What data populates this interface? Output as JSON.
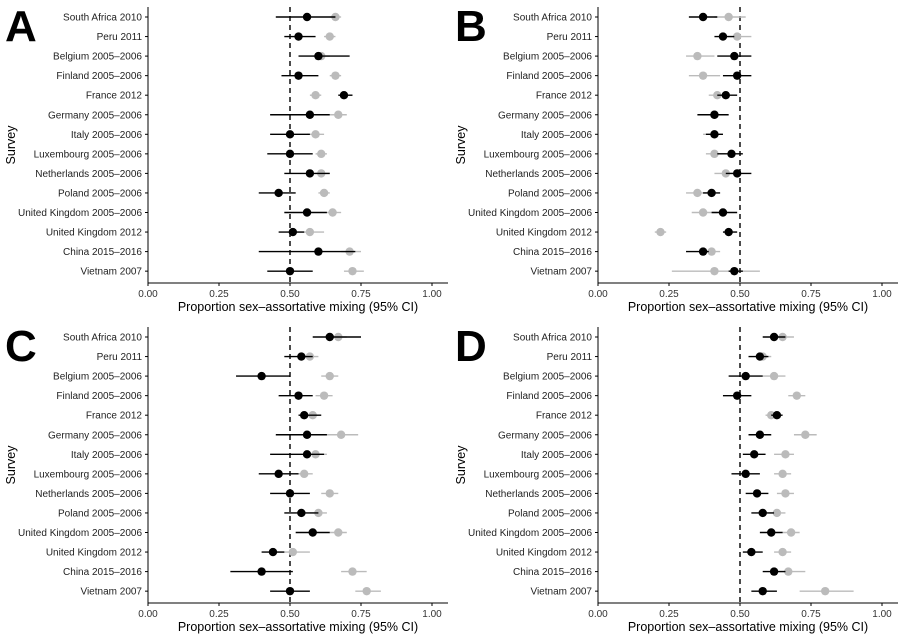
{
  "chart_data": [
    {
      "type": "scatter",
      "panel_label": "A",
      "xlabel": "Proportion sex–assortative mixing (95% CI)",
      "ylabel": "Survey",
      "xlim": [
        0,
        1
      ],
      "xticks": [
        "0.00",
        "0.25",
        "0.50",
        "0.75",
        "1.00"
      ],
      "reference_line": 0.5,
      "categories": [
        "South Africa 2010",
        "Peru 2011",
        "Belgium 2005–2006",
        "Finland 2005–2006",
        "France 2012",
        "Germany 2005–2006",
        "Italy 2005–2006",
        "Luxembourg 2005–2006",
        "Netherlands 2005–2006",
        "Poland 2005–2006",
        "United Kingdom 2005–2006",
        "United Kingdom 2012",
        "China 2015–2016",
        "Vietnam 2007"
      ],
      "series": [
        {
          "color": "#bbbbbb",
          "points": [
            [
              0.66,
              0.64,
              0.68
            ],
            [
              0.64,
              0.62,
              0.66
            ],
            [
              0.61,
              0.58,
              0.64
            ],
            [
              0.66,
              0.64,
              0.68
            ],
            [
              0.59,
              0.57,
              0.61
            ],
            [
              0.67,
              0.64,
              0.7
            ],
            [
              0.59,
              0.56,
              0.62
            ],
            [
              0.61,
              0.59,
              0.63
            ],
            [
              0.61,
              0.59,
              0.64
            ],
            [
              0.62,
              0.6,
              0.64
            ],
            [
              0.65,
              0.63,
              0.68
            ],
            [
              0.57,
              0.52,
              0.62
            ],
            [
              0.71,
              0.68,
              0.75
            ],
            [
              0.72,
              0.69,
              0.76
            ]
          ]
        },
        {
          "color": "#000000",
          "points": [
            [
              0.56,
              0.45,
              0.66
            ],
            [
              0.53,
              0.48,
              0.59
            ],
            [
              0.6,
              0.53,
              0.71
            ],
            [
              0.53,
              0.47,
              0.6
            ],
            [
              0.69,
              0.67,
              0.72
            ],
            [
              0.57,
              0.43,
              0.64
            ],
            [
              0.5,
              0.43,
              0.57
            ],
            [
              0.5,
              0.42,
              0.58
            ],
            [
              0.57,
              0.48,
              0.64
            ],
            [
              0.46,
              0.39,
              0.52
            ],
            [
              0.56,
              0.48,
              0.63
            ],
            [
              0.51,
              0.46,
              0.55
            ],
            [
              0.6,
              0.39,
              0.73
            ],
            [
              0.5,
              0.42,
              0.58
            ]
          ]
        }
      ]
    },
    {
      "type": "scatter",
      "panel_label": "B",
      "xlabel": "Proportion sex–assortative mixing (95% CI)",
      "ylabel": "Survey",
      "xlim": [
        0,
        1
      ],
      "xticks": [
        "0.00",
        "0.25",
        "0.50",
        "0.75",
        "1.00"
      ],
      "reference_line": 0.5,
      "categories": [
        "South Africa 2010",
        "Peru 2011",
        "Belgium 2005–2006",
        "Finland 2005–2006",
        "France 2012",
        "Germany 2005–2006",
        "Italy 2005–2006",
        "Luxembourg 2005–2006",
        "Netherlands 2005–2006",
        "Poland 2005–2006",
        "United Kingdom 2005–2006",
        "United Kingdom 2012",
        "China 2015–2016",
        "Vietnam 2007"
      ],
      "series": [
        {
          "color": "#bbbbbb",
          "points": [
            [
              0.46,
              0.41,
              0.52
            ],
            [
              0.49,
              0.45,
              0.54
            ],
            [
              0.35,
              0.31,
              0.41
            ],
            [
              0.37,
              0.32,
              0.43
            ],
            [
              0.42,
              0.39,
              0.45
            ],
            [
              0.41,
              0.36,
              0.46
            ],
            [
              0.41,
              0.37,
              0.44
            ],
            [
              0.41,
              0.38,
              0.45
            ],
            [
              0.45,
              0.41,
              0.49
            ],
            [
              0.35,
              0.31,
              0.39
            ],
            [
              0.37,
              0.33,
              0.42
            ],
            [
              0.22,
              0.2,
              0.24
            ],
            [
              0.4,
              0.37,
              0.43
            ],
            [
              0.41,
              0.26,
              0.57
            ]
          ]
        },
        {
          "color": "#000000",
          "points": [
            [
              0.37,
              0.32,
              0.42
            ],
            [
              0.44,
              0.41,
              0.48
            ],
            [
              0.48,
              0.42,
              0.54
            ],
            [
              0.49,
              0.44,
              0.54
            ],
            [
              0.45,
              0.42,
              0.49
            ],
            [
              0.41,
              0.35,
              0.46
            ],
            [
              0.41,
              0.38,
              0.44
            ],
            [
              0.47,
              0.42,
              0.51
            ],
            [
              0.49,
              0.45,
              0.54
            ],
            [
              0.4,
              0.37,
              0.43
            ],
            [
              0.44,
              0.4,
              0.49
            ],
            [
              0.46,
              0.44,
              0.49
            ],
            [
              0.37,
              0.31,
              0.39
            ],
            [
              0.48,
              0.46,
              0.51
            ]
          ]
        }
      ]
    },
    {
      "type": "scatter",
      "panel_label": "C",
      "xlabel": "Proportion sex–assortative mixing (95% CI)",
      "ylabel": "Survey",
      "xlim": [
        0,
        1
      ],
      "xticks": [
        "0.00",
        "0.25",
        "0.50",
        "0.75",
        "1.00"
      ],
      "reference_line": 0.5,
      "categories": [
        "South Africa 2010",
        "Peru 2011",
        "Belgium 2005–2006",
        "Finland 2005–2006",
        "France 2012",
        "Germany 2005–2006",
        "Italy 2005–2006",
        "Luxembourg 2005–2006",
        "Netherlands 2005–2006",
        "Poland 2005–2006",
        "United Kingdom 2005–2006",
        "United Kingdom 2012",
        "China 2015–2016",
        "Vietnam 2007"
      ],
      "series": [
        {
          "color": "#bbbbbb",
          "points": [
            [
              0.67,
              0.64,
              0.7
            ],
            [
              0.57,
              0.54,
              0.6
            ],
            [
              0.64,
              0.61,
              0.67
            ],
            [
              0.62,
              0.59,
              0.65
            ],
            [
              0.58,
              0.56,
              0.6
            ],
            [
              0.68,
              0.62,
              0.74
            ],
            [
              0.59,
              0.55,
              0.63
            ],
            [
              0.55,
              0.52,
              0.58
            ],
            [
              0.64,
              0.61,
              0.67
            ],
            [
              0.6,
              0.57,
              0.63
            ],
            [
              0.67,
              0.64,
              0.7
            ],
            [
              0.51,
              0.45,
              0.57
            ],
            [
              0.72,
              0.68,
              0.77
            ],
            [
              0.77,
              0.73,
              0.82
            ]
          ]
        },
        {
          "color": "#000000",
          "points": [
            [
              0.64,
              0.58,
              0.75
            ],
            [
              0.54,
              0.48,
              0.58
            ],
            [
              0.4,
              0.31,
              0.5
            ],
            [
              0.53,
              0.46,
              0.58
            ],
            [
              0.55,
              0.53,
              0.61
            ],
            [
              0.56,
              0.45,
              0.63
            ],
            [
              0.56,
              0.43,
              0.62
            ],
            [
              0.46,
              0.39,
              0.53
            ],
            [
              0.5,
              0.43,
              0.57
            ],
            [
              0.54,
              0.48,
              0.6
            ],
            [
              0.58,
              0.52,
              0.64
            ],
            [
              0.44,
              0.4,
              0.48
            ],
            [
              0.4,
              0.29,
              0.51
            ],
            [
              0.5,
              0.43,
              0.57
            ]
          ]
        }
      ]
    },
    {
      "type": "scatter",
      "panel_label": "D",
      "xlabel": "Proportion sex–assortative mixing (95% CI)",
      "ylabel": "Survey",
      "xlim": [
        0,
        1
      ],
      "xticks": [
        "0.00",
        "0.25",
        "0.50",
        "0.75",
        "1.00"
      ],
      "reference_line": 0.5,
      "categories": [
        "South Africa 2010",
        "Peru 2011",
        "Belgium 2005–2006",
        "Finland 2005–2006",
        "France 2012",
        "Germany 2005–2006",
        "Italy 2005–2006",
        "Luxembourg 2005–2006",
        "Netherlands 2005–2006",
        "Poland 2005–2006",
        "United Kingdom 2005–2006",
        "United Kingdom 2012",
        "China 2015–2016",
        "Vietnam 2007"
      ],
      "series": [
        {
          "color": "#bbbbbb",
          "points": [
            [
              0.65,
              0.61,
              0.69
            ],
            [
              0.58,
              0.56,
              0.61
            ],
            [
              0.62,
              0.58,
              0.66
            ],
            [
              0.7,
              0.67,
              0.73
            ],
            [
              0.61,
              0.59,
              0.63
            ],
            [
              0.73,
              0.69,
              0.77
            ],
            [
              0.66,
              0.62,
              0.69
            ],
            [
              0.65,
              0.62,
              0.68
            ],
            [
              0.66,
              0.63,
              0.69
            ],
            [
              0.63,
              0.6,
              0.66
            ],
            [
              0.68,
              0.65,
              0.71
            ],
            [
              0.65,
              0.62,
              0.68
            ],
            [
              0.67,
              0.63,
              0.73
            ],
            [
              0.8,
              0.71,
              0.9
            ]
          ]
        },
        {
          "color": "#000000",
          "points": [
            [
              0.62,
              0.58,
              0.66
            ],
            [
              0.57,
              0.53,
              0.6
            ],
            [
              0.52,
              0.46,
              0.58
            ],
            [
              0.49,
              0.44,
              0.54
            ],
            [
              0.63,
              0.61,
              0.65
            ],
            [
              0.57,
              0.53,
              0.61
            ],
            [
              0.55,
              0.51,
              0.59
            ],
            [
              0.52,
              0.47,
              0.57
            ],
            [
              0.56,
              0.52,
              0.6
            ],
            [
              0.58,
              0.54,
              0.62
            ],
            [
              0.61,
              0.57,
              0.65
            ],
            [
              0.54,
              0.51,
              0.58
            ],
            [
              0.62,
              0.58,
              0.66
            ],
            [
              0.58,
              0.54,
              0.63
            ]
          ]
        }
      ]
    }
  ]
}
